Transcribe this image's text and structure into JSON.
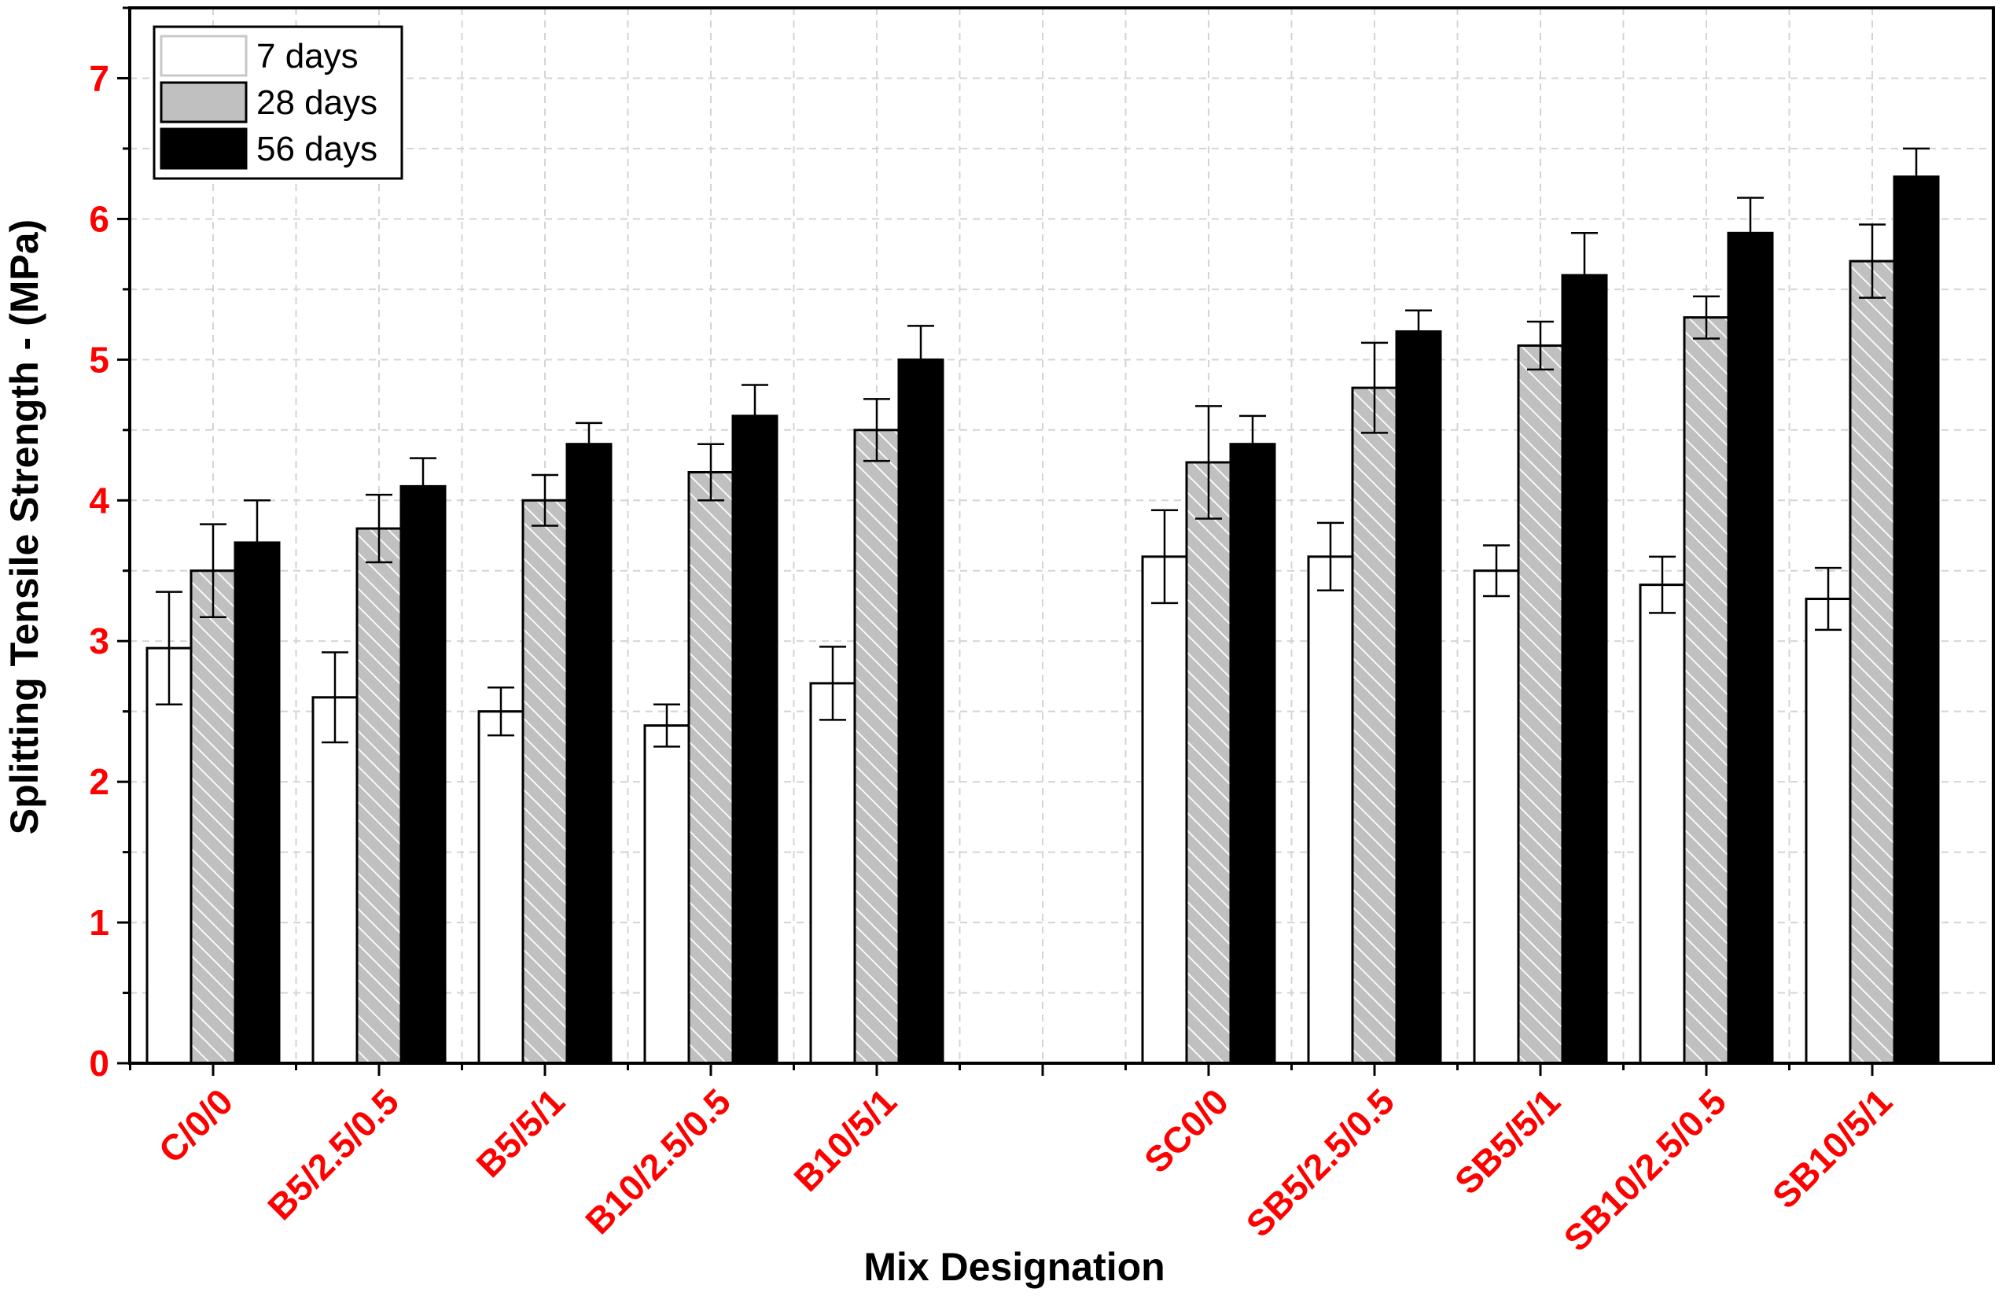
{
  "chart_data": {
    "type": "bar",
    "title": "",
    "xlabel": "Mix Designation",
    "ylabel": "Splitting Tensile Strength - (MPa)",
    "ylim": [
      0,
      7.5
    ],
    "yticks": [
      "0",
      "1",
      "2",
      "3",
      "4",
      "5",
      "6",
      "7"
    ],
    "grid": true,
    "legend_position": "top-left",
    "groups": [
      {
        "label": "C/0/0",
        "slot": 0
      },
      {
        "label": "B5/2.5/0.5",
        "slot": 1
      },
      {
        "label": "B5/5/1",
        "slot": 2
      },
      {
        "label": "B10/2.5/0.5",
        "slot": 3
      },
      {
        "label": "B10/5/1",
        "slot": 4
      },
      {
        "label": "SC0/0",
        "slot": 6
      },
      {
        "label": "SB5/2.5/0.5",
        "slot": 7
      },
      {
        "label": "SB5/5/1",
        "slot": 8
      },
      {
        "label": "SB10/2.5/0.5",
        "slot": 9
      },
      {
        "label": "SB10/5/1",
        "slot": 10
      }
    ],
    "series": [
      {
        "name": "7 days",
        "fill": "#ffffff",
        "pattern": "none",
        "values": [
          2.95,
          2.6,
          2.5,
          2.4,
          2.7,
          3.6,
          3.6,
          3.5,
          3.4,
          3.3
        ],
        "errors": [
          0.4,
          0.32,
          0.17,
          0.15,
          0.26,
          0.33,
          0.24,
          0.18,
          0.2,
          0.22
        ]
      },
      {
        "name": "28 days",
        "fill": "#c0c0c0",
        "pattern": "hatch",
        "values": [
          3.5,
          3.8,
          4.0,
          4.2,
          4.5,
          4.27,
          4.8,
          5.1,
          5.3,
          5.7
        ],
        "errors": [
          0.33,
          0.24,
          0.18,
          0.2,
          0.22,
          0.4,
          0.32,
          0.17,
          0.15,
          0.26
        ]
      },
      {
        "name": "56 days",
        "fill": "#000000",
        "pattern": "none",
        "values": [
          3.7,
          4.1,
          4.4,
          4.6,
          5.0,
          4.4,
          5.2,
          5.6,
          5.9,
          6.3
        ],
        "errors": [
          0.3,
          0.2,
          0.15,
          0.22,
          0.24,
          0.2,
          0.15,
          0.3,
          0.25,
          0.2
        ]
      }
    ]
  }
}
